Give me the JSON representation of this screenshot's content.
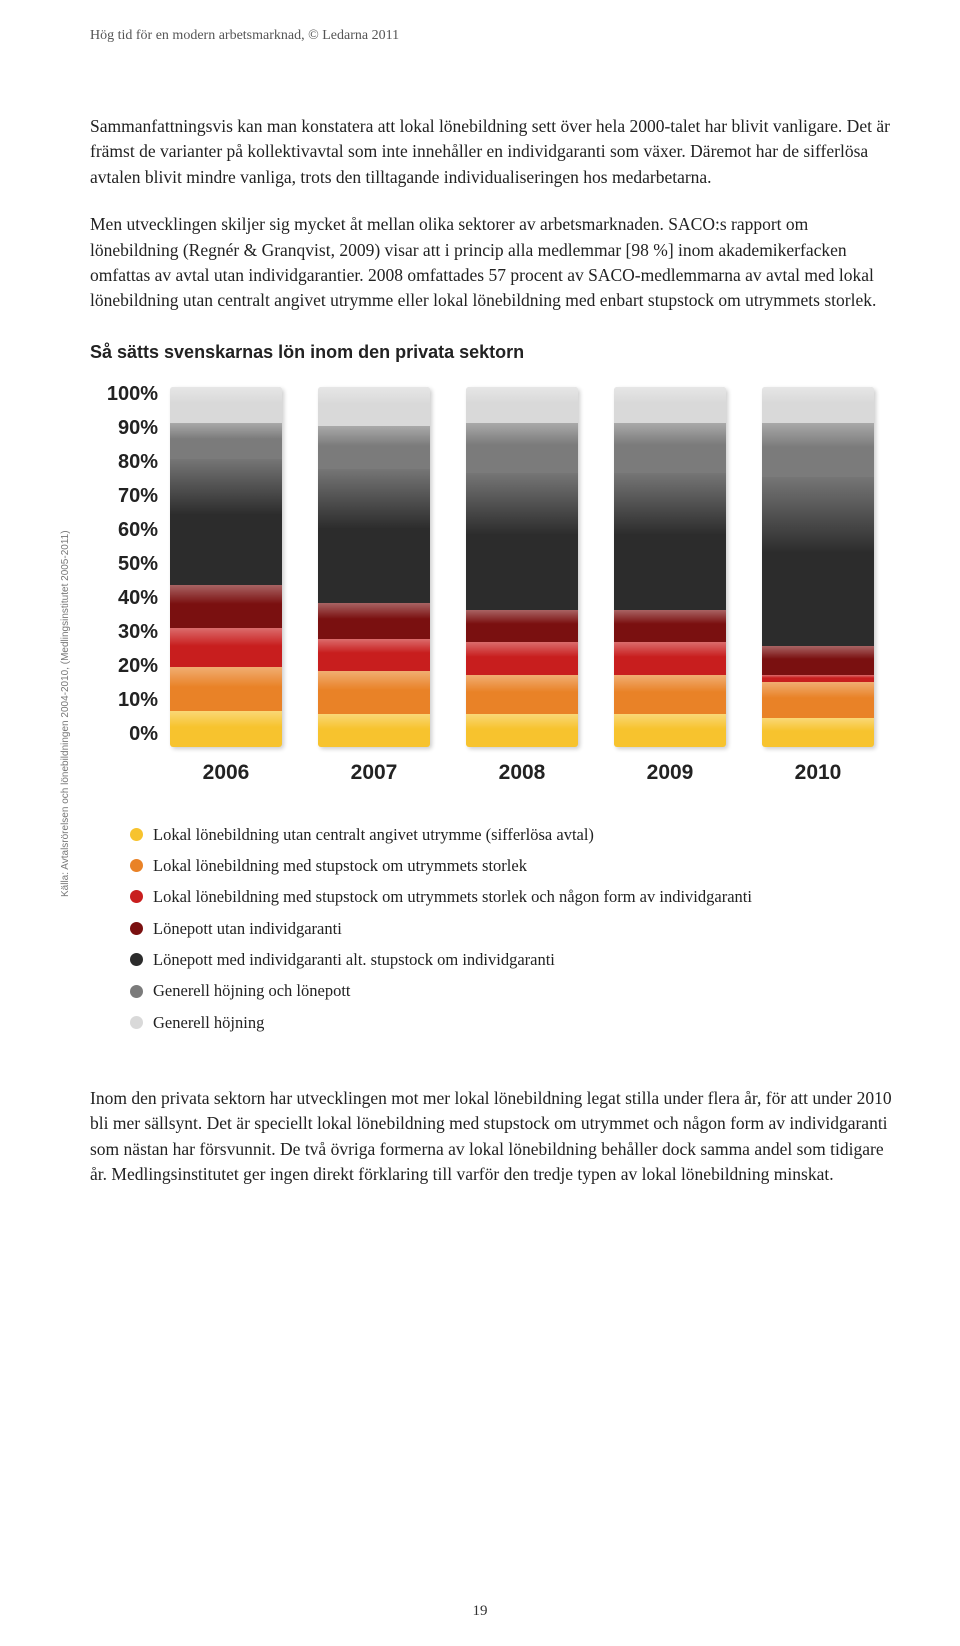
{
  "header": "Hög tid för en modern arbetsmarknad, © Ledarna 2011",
  "para1": "Sammanfattningsvis kan man konstatera att lokal lönebildning sett över hela 2000-talet har blivit vanligare. Det är främst de varianter på kollektivavtal som inte innehåller en individgaranti som växer. Däremot har de sifferlösa avtalen blivit mindre vanliga, trots den tilltagande individualiseringen hos medarbetarna.",
  "para2": "Men utvecklingen skiljer sig mycket åt mellan olika sektorer av arbetsmarknaden. SACO:s rapport om lönebildning (Regnér & Granqvist, 2009) visar att i princip alla medlemmar [98 %] inom akademikerfacken omfattas av avtal utan individgarantier. 2008 omfattades 57 procent av SACO-medlemmarna av avtal med lokal lönebildning utan centralt angivet utrymme eller lokal lönebildning med enbart stupstock om utrymmets storlek.",
  "chart": {
    "title": "Så sätts svenskarnas lön inom den privata sektorn",
    "source": "Källa: Avtalsrörelsen och lönebildningen 2004-2010, (Medlingsinstitutet 2005-2011)",
    "type": "stacked-bar",
    "y_ticks": [
      "100%",
      "90%",
      "80%",
      "70%",
      "60%",
      "50%",
      "40%",
      "30%",
      "20%",
      "10%",
      "0%"
    ],
    "ylim": [
      0,
      100
    ],
    "categories": [
      "2006",
      "2007",
      "2008",
      "2009",
      "2010"
    ],
    "series_colors": {
      "generell_hojning": "#d9d9d9",
      "generell_hojning_lonepott": "#7b7b7b",
      "lonepott_med_individ": "#2c2c2c",
      "lonepott_utan_individ": "#7a1010",
      "lokal_stupstock_individ": "#c81e1e",
      "lokal_stupstock": "#e98227",
      "lokal_sifferlosa": "#f7c32e"
    },
    "data": {
      "2006": {
        "generell_hojning": 10,
        "generell_hojning_lonepott": 10,
        "lonepott_med_individ": 35,
        "lonepott_utan_individ": 12,
        "lokal_stupstock_individ": 11,
        "lokal_stupstock": 12,
        "lokal_sifferlosa": 10
      },
      "2007": {
        "generell_hojning": 11,
        "generell_hojning_lonepott": 12,
        "lonepott_med_individ": 37,
        "lonepott_utan_individ": 10,
        "lokal_stupstock_individ": 9,
        "lokal_stupstock": 12,
        "lokal_sifferlosa": 9
      },
      "2008": {
        "generell_hojning": 10,
        "generell_hojning_lonepott": 14,
        "lonepott_med_individ": 38,
        "lonepott_utan_individ": 9,
        "lokal_stupstock_individ": 9,
        "lokal_stupstock": 11,
        "lokal_sifferlosa": 9
      },
      "2009": {
        "generell_hojning": 10,
        "generell_hojning_lonepott": 14,
        "lonepott_med_individ": 38,
        "lonepott_utan_individ": 9,
        "lokal_stupstock_individ": 9,
        "lokal_stupstock": 11,
        "lokal_sifferlosa": 9
      },
      "2010": {
        "generell_hojning": 10,
        "generell_hojning_lonepott": 15,
        "lonepott_med_individ": 47,
        "lonepott_utan_individ": 8,
        "lokal_stupstock_individ": 2,
        "lokal_stupstock": 10,
        "lokal_sifferlosa": 8
      }
    },
    "stack_order": [
      "generell_hojning",
      "generell_hojning_lonepott",
      "lonepott_med_individ",
      "lonepott_utan_individ",
      "lokal_stupstock_individ",
      "lokal_stupstock",
      "lokal_sifferlosa"
    ],
    "legend": [
      {
        "key": "lokal_sifferlosa",
        "label": "Lokal lönebildning utan centralt angivet utrymme (sifferlösa avtal)"
      },
      {
        "key": "lokal_stupstock",
        "label": "Lokal lönebildning med stupstock om utrymmets storlek"
      },
      {
        "key": "lokal_stupstock_individ",
        "label": "Lokal lönebildning med stupstock om utrymmets storlek och någon form av individgaranti"
      },
      {
        "key": "lonepott_utan_individ",
        "label": "Lönepott utan individgaranti"
      },
      {
        "key": "lonepott_med_individ",
        "label": "Lönepott med individgaranti alt. stupstock om individgaranti"
      },
      {
        "key": "generell_hojning_lonepott",
        "label": "Generell höjning och lönepott"
      },
      {
        "key": "generell_hojning",
        "label": "Generell höjning"
      }
    ]
  },
  "para3": "Inom den privata sektorn har utvecklingen mot mer lokal lönebildning legat stilla under flera år, för att under 2010 bli mer sällsynt. Det är speciellt lokal lönebildning med stupstock om utrymmet och någon form av individgaranti som nästan har försvunnit. De två övriga formerna av lokal lönebildning behåller dock samma andel som tidigare år. Medlingsinstitutet ger ingen direkt förklaring till varför den tredje typen av lokal lönebildning minskat.",
  "page_number": "19"
}
